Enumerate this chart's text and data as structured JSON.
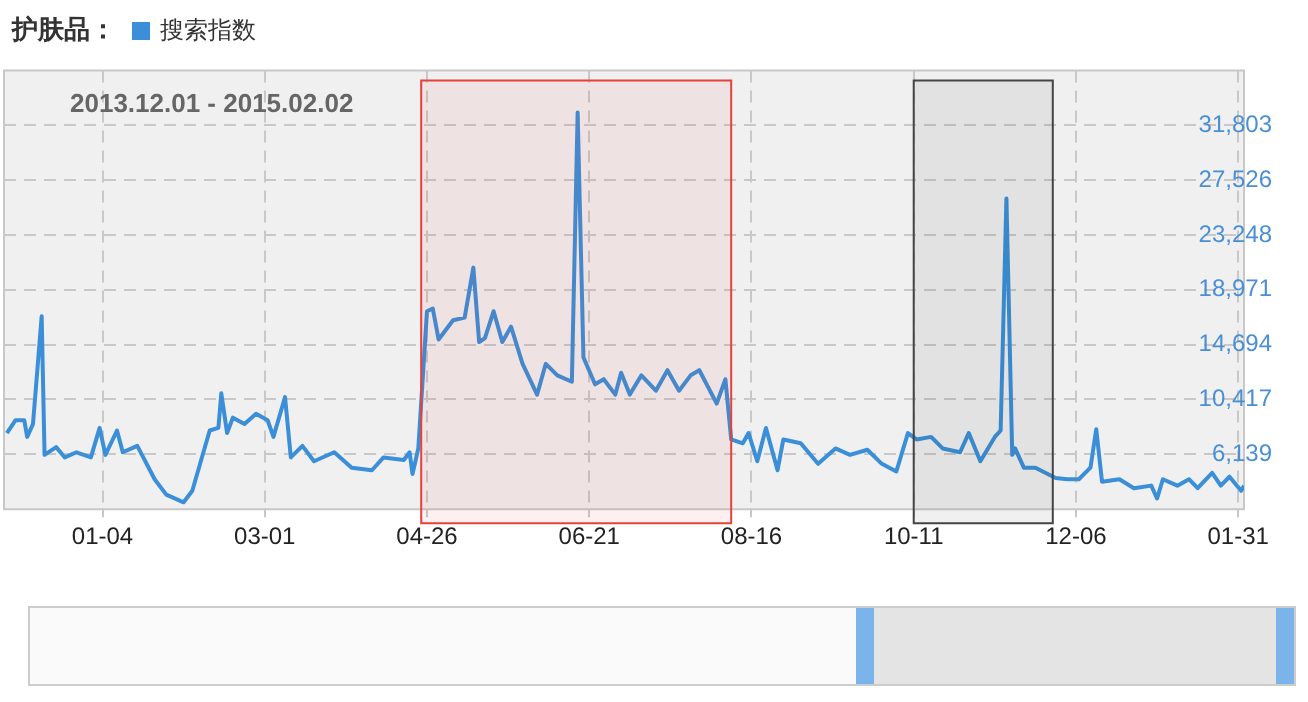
{
  "chart_data": {
    "type": "line",
    "title": "护肤品：",
    "legend": "top left",
    "grid": true,
    "line_style": "solid",
    "marker": "none",
    "annotations": [
      "2013.12.01 - 2015.02.02"
    ],
    "xlim": [
      "2013-12-01",
      "2015-02-02"
    ],
    "xticks": [
      {
        "value": "2014-01-04",
        "label": "01-04"
      },
      {
        "value": "2014-03-01",
        "label": "03-01"
      },
      {
        "value": "2014-04-26",
        "label": "04-26"
      },
      {
        "value": "2014-06-21",
        "label": "06-21"
      },
      {
        "value": "2014-08-16",
        "label": "08-16"
      },
      {
        "value": "2014-10-11",
        "label": "10-11"
      },
      {
        "value": "2014-12-06",
        "label": "12-06"
      },
      {
        "value": "2015-01-31",
        "label": "01-31"
      }
    ],
    "ylim": [
      1862,
      36080
    ],
    "yticks": [
      {
        "value": 6139,
        "label": "6,139"
      },
      {
        "value": 10417,
        "label": "10,417"
      },
      {
        "value": 14694,
        "label": "14,694"
      },
      {
        "value": 18971,
        "label": "18,971"
      },
      {
        "value": 23248,
        "label": "23,248"
      },
      {
        "value": 27526,
        "label": "27,526"
      },
      {
        "value": 31803,
        "label": "31,803"
      }
    ],
    "bands": [
      {
        "axis": "x",
        "from": "2014-04-24",
        "to": "2014-08-09",
        "color": "#e8403a"
      },
      {
        "axis": "x",
        "from": "2014-10-11",
        "to": "2014-11-28",
        "color": "#444444"
      }
    ],
    "series": [
      {
        "name": "搜索指数",
        "color": "#3a8fd8",
        "x": [
          "2013-12-02",
          "2013-12-05",
          "2013-12-08",
          "2013-12-09",
          "2013-12-11",
          "2013-12-14",
          "2013-12-15",
          "2013-12-19",
          "2013-12-22",
          "2013-12-26",
          "2013-12-31",
          "2014-01-03",
          "2014-01-05",
          "2014-01-09",
          "2014-01-11",
          "2014-01-16",
          "2014-01-22",
          "2014-01-26",
          "2014-02-01",
          "2014-02-04",
          "2014-02-10",
          "2014-02-13",
          "2014-02-14",
          "2014-02-16",
          "2014-02-18",
          "2014-02-22",
          "2014-02-26",
          "2014-03-02",
          "2014-03-04",
          "2014-03-08",
          "2014-03-10",
          "2014-03-14",
          "2014-03-18",
          "2014-03-25",
          "2014-03-31",
          "2014-04-07",
          "2014-04-11",
          "2014-04-18",
          "2014-04-20",
          "2014-04-21",
          "2014-04-23",
          "2014-04-26",
          "2014-04-28",
          "2014-04-30",
          "2014-05-05",
          "2014-05-09",
          "2014-05-12",
          "2014-05-14",
          "2014-05-16",
          "2014-05-19",
          "2014-05-22",
          "2014-05-25",
          "2014-05-29",
          "2014-06-03",
          "2014-06-06",
          "2014-06-10",
          "2014-06-15",
          "2014-06-17",
          "2014-06-19",
          "2014-06-23",
          "2014-06-26",
          "2014-06-30",
          "2014-07-02",
          "2014-07-05",
          "2014-07-09",
          "2014-07-14",
          "2014-07-18",
          "2014-07-22",
          "2014-07-26",
          "2014-07-29",
          "2014-08-04",
          "2014-08-07",
          "2014-08-09",
          "2014-08-13",
          "2014-08-15",
          "2014-08-18",
          "2014-08-21",
          "2014-08-25",
          "2014-08-27",
          "2014-09-02",
          "2014-09-08",
          "2014-09-14",
          "2014-09-19",
          "2014-09-25",
          "2014-09-30",
          "2014-10-05",
          "2014-10-09",
          "2014-10-12",
          "2014-10-17",
          "2014-10-21",
          "2014-10-27",
          "2014-10-30",
          "2014-11-03",
          "2014-11-08",
          "2014-11-10",
          "2014-11-12",
          "2014-11-14",
          "2014-11-15",
          "2014-11-18",
          "2014-11-22",
          "2014-11-29",
          "2014-12-03",
          "2014-12-07",
          "2014-12-11",
          "2014-12-13",
          "2014-12-15",
          "2014-12-21",
          "2014-12-26",
          "2015-01-01",
          "2015-01-03",
          "2015-01-05",
          "2015-01-10",
          "2015-01-14",
          "2015-01-17",
          "2015-01-22",
          "2015-01-25",
          "2015-01-28",
          "2015-02-01",
          "2015-02-02"
        ],
        "values": [
          7800,
          8800,
          8800,
          7500,
          8500,
          16900,
          6100,
          6700,
          5900,
          6300,
          5900,
          8200,
          6100,
          8000,
          6300,
          6800,
          4200,
          3000,
          2400,
          3300,
          8000,
          8200,
          10900,
          7800,
          9000,
          8500,
          9300,
          8800,
          7500,
          10600,
          5900,
          6800,
          5600,
          6300,
          5100,
          4900,
          5900,
          5700,
          6300,
          4600,
          6600,
          17300,
          17500,
          15100,
          16600,
          16800,
          20700,
          14900,
          15200,
          17300,
          14900,
          16100,
          13200,
          10800,
          13200,
          12300,
          11800,
          32800,
          13700,
          11600,
          12000,
          10800,
          12500,
          10800,
          12300,
          11100,
          12700,
          11100,
          12300,
          12700,
          10100,
          12000,
          7300,
          7000,
          7800,
          5600,
          8200,
          4900,
          7300,
          7000,
          5400,
          6600,
          6100,
          6500,
          5400,
          4800,
          7800,
          7300,
          7500,
          6600,
          6300,
          7800,
          5600,
          7500,
          8000,
          26100,
          6100,
          6600,
          5100,
          5100,
          4300,
          4200,
          4200,
          5100,
          8100,
          4000,
          4200,
          3500,
          3700,
          2700,
          4200,
          3700,
          4200,
          3500,
          4700,
          3700,
          4400,
          3300,
          3700
        ]
      }
    ]
  }
}
